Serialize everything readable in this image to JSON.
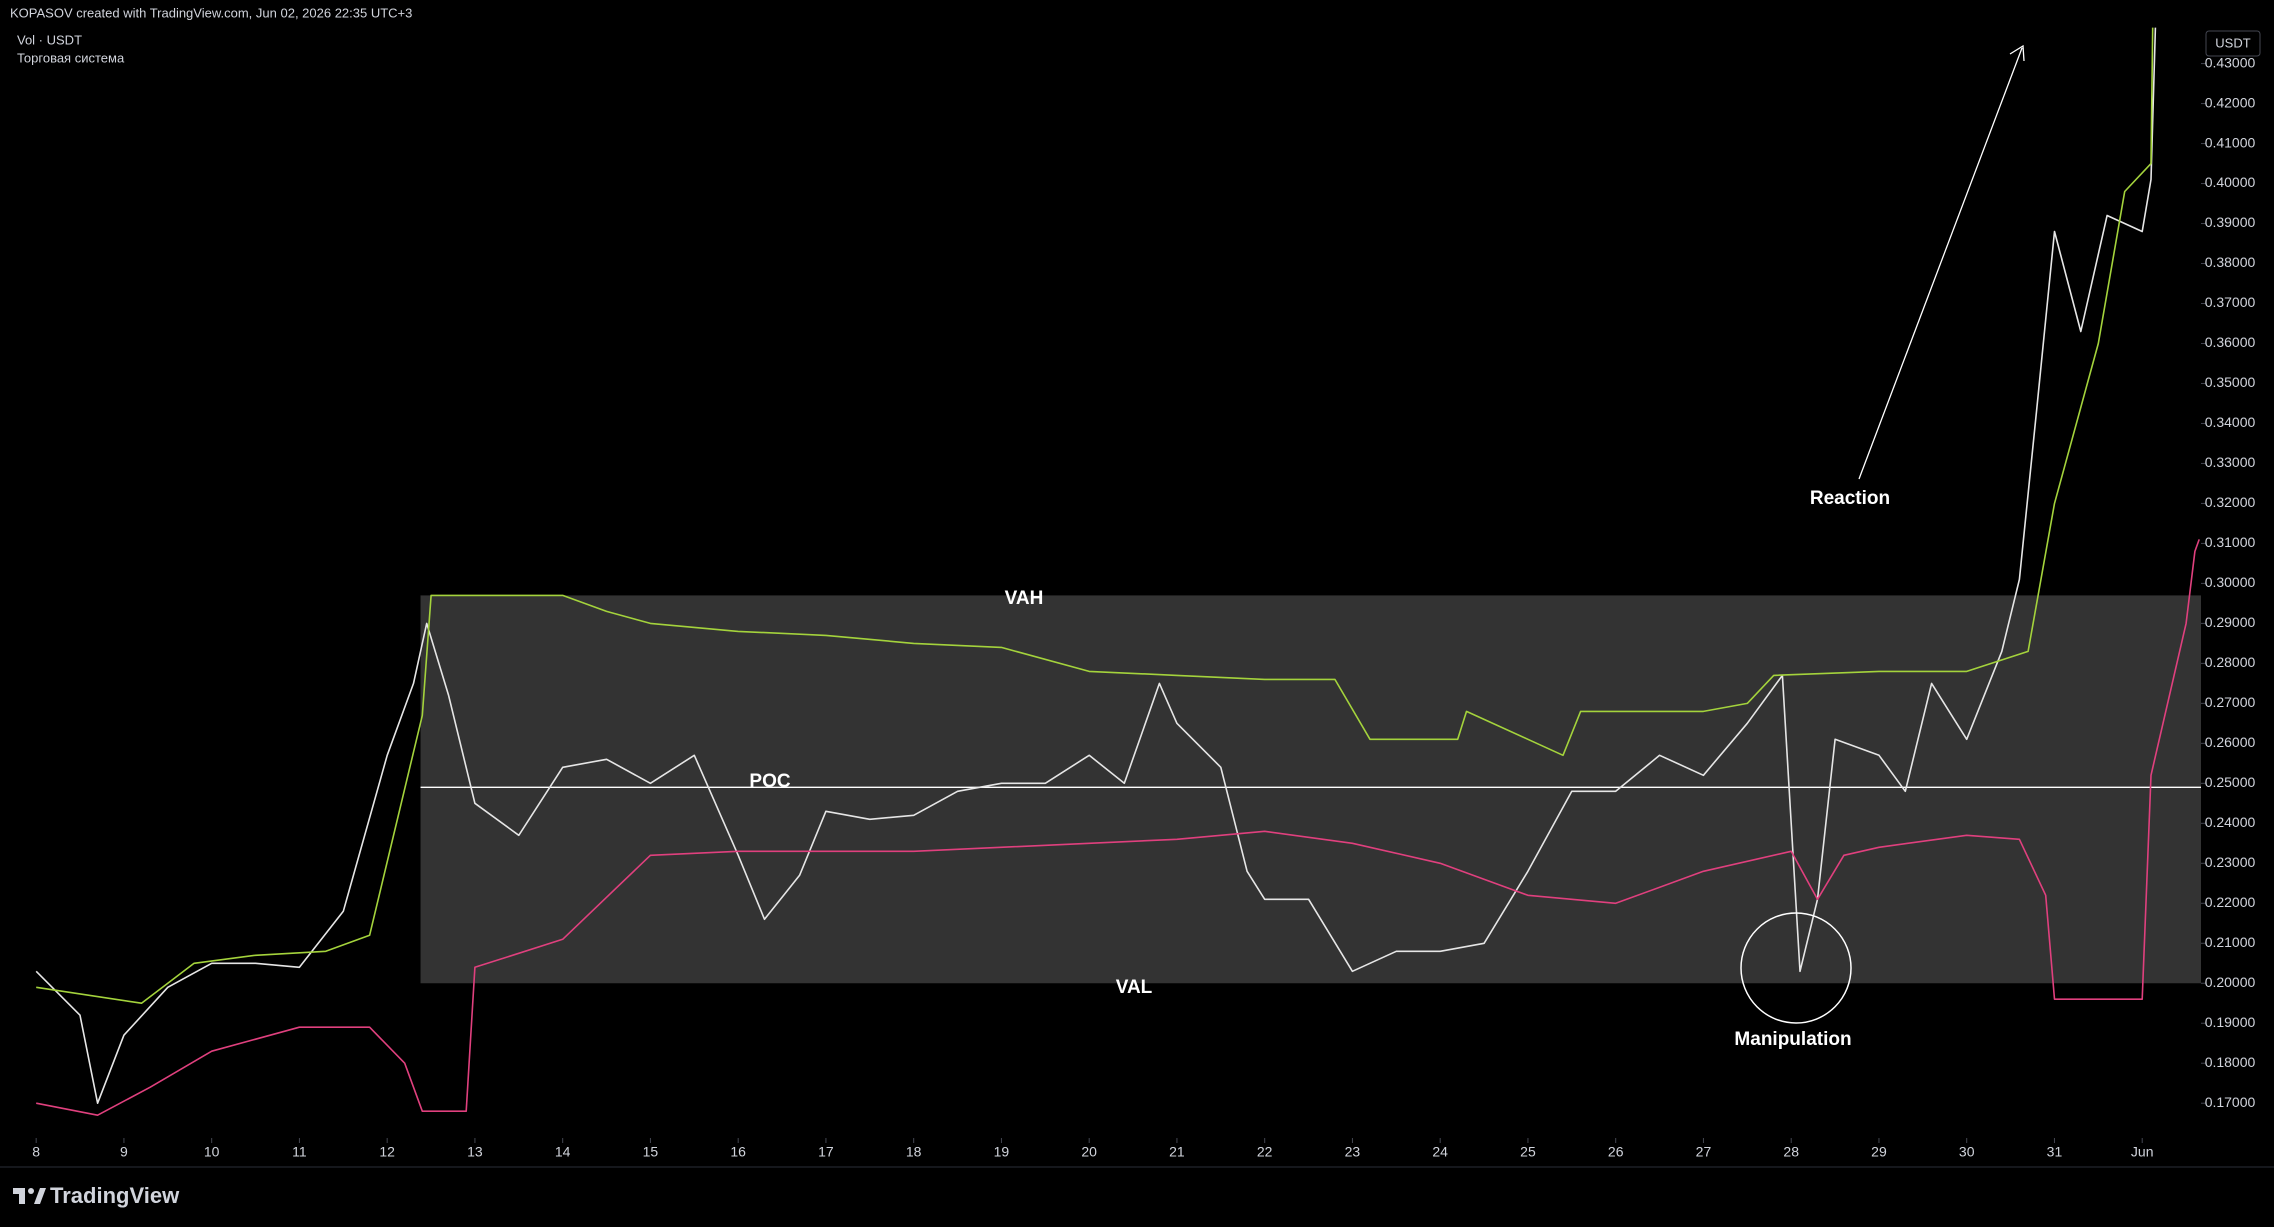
{
  "header": {
    "attribution": "KOPASOV created with TradingView.com, Jun 02, 2026 22:35 UTC+3",
    "symbol": "Vol · USDT",
    "indicator": "Торговая система"
  },
  "footer": {
    "brand": "TradingView"
  },
  "chart_data": {
    "type": "line",
    "currency_label": "USDT",
    "xlim": [
      7.72,
      32.67
    ],
    "ylim": [
      0.1613,
      0.4394
    ],
    "xticks": [
      8,
      9,
      10,
      11,
      12,
      13,
      14,
      15,
      16,
      17,
      18,
      19,
      20,
      21,
      22,
      23,
      24,
      25,
      26,
      27,
      28,
      29,
      30,
      31,
      {
        "value": 32,
        "label": "Jun"
      }
    ],
    "yticks": [
      {
        "value": 0.17,
        "label": "0.17000"
      },
      {
        "value": 0.18,
        "label": "0.18000"
      },
      {
        "value": 0.19,
        "label": "0.19000"
      },
      {
        "value": 0.2,
        "label": "0.20000"
      },
      {
        "value": 0.21,
        "label": "0.21000"
      },
      {
        "value": 0.22,
        "label": "0.22000"
      },
      {
        "value": 0.23,
        "label": "0.23000"
      },
      {
        "value": 0.24,
        "label": "0.24000"
      },
      {
        "value": 0.25,
        "label": "0.25000"
      },
      {
        "value": 0.26,
        "label": "0.26000"
      },
      {
        "value": 0.27,
        "label": "0.27000"
      },
      {
        "value": 0.28,
        "label": "0.28000"
      },
      {
        "value": 0.29,
        "label": "0.29000"
      },
      {
        "value": 0.3,
        "label": "0.30000"
      },
      {
        "value": 0.31,
        "label": "0.31000"
      },
      {
        "value": 0.32,
        "label": "0.32000"
      },
      {
        "value": 0.33,
        "label": "0.33000"
      },
      {
        "value": 0.34,
        "label": "0.34000"
      },
      {
        "value": 0.35,
        "label": "0.35000"
      },
      {
        "value": 0.36,
        "label": "0.36000"
      },
      {
        "value": 0.37,
        "label": "0.37000"
      },
      {
        "value": 0.38,
        "label": "0.38000"
      },
      {
        "value": 0.39,
        "label": "0.39000"
      },
      {
        "value": 0.4,
        "label": "0.40000"
      },
      {
        "value": 0.41,
        "label": "0.41000"
      },
      {
        "value": 0.42,
        "label": "0.42000"
      },
      {
        "value": 0.43,
        "label": "0.43000"
      }
    ],
    "series": [
      {
        "color": "#e6e6e6",
        "x": [
          8,
          8.5,
          8.7,
          9,
          9.5,
          10,
          10.5,
          11,
          11.5,
          12,
          12.3,
          12.45,
          12.7,
          13,
          13.5,
          14,
          14.5,
          15,
          15.5,
          16,
          16.3,
          16.7,
          17,
          17.5,
          18,
          18.5,
          19,
          19.5,
          20,
          20.4,
          20.8,
          21,
          21.5,
          21.8,
          22,
          22.5,
          23,
          23.5,
          24,
          24.5,
          25,
          25.5,
          26,
          26.5,
          27,
          27.5,
          27.9,
          28.1,
          28.3,
          28.5,
          29,
          29.3,
          29.6,
          30,
          30.4,
          30.6,
          30.8,
          31,
          31.3,
          31.6,
          32,
          32.1,
          32.15
        ],
        "values": [
          0.203,
          0.192,
          0.17,
          0.187,
          0.199,
          0.205,
          0.205,
          0.204,
          0.218,
          0.257,
          0.275,
          0.29,
          0.272,
          0.245,
          0.237,
          0.254,
          0.256,
          0.25,
          0.257,
          0.232,
          0.216,
          0.227,
          0.243,
          0.241,
          0.242,
          0.248,
          0.25,
          0.25,
          0.257,
          0.25,
          0.275,
          0.265,
          0.254,
          0.228,
          0.221,
          0.221,
          0.203,
          0.208,
          0.208,
          0.21,
          0.228,
          0.248,
          0.248,
          0.257,
          0.252,
          0.265,
          0.277,
          0.203,
          0.221,
          0.261,
          0.257,
          0.248,
          0.275,
          0.261,
          0.283,
          0.301,
          0.344,
          0.388,
          0.363,
          0.392,
          0.388,
          0.401,
          0.439
        ]
      },
      {
        "color": "#a4d33c",
        "x": [
          8,
          9.2,
          9.8,
          10.5,
          11.3,
          11.8,
          12.4,
          12.5,
          14,
          14.5,
          15,
          16,
          17,
          18,
          19,
          20,
          21,
          22,
          22.8,
          23.2,
          24.2,
          24.3,
          25,
          25.4,
          25.6,
          27,
          27.5,
          27.8,
          29,
          30,
          30.7,
          31,
          31.5,
          31.8,
          32.1,
          32.12
        ],
        "values": [
          0.199,
          0.195,
          0.205,
          0.207,
          0.208,
          0.212,
          0.267,
          0.297,
          0.297,
          0.293,
          0.29,
          0.288,
          0.287,
          0.285,
          0.284,
          0.278,
          0.277,
          0.276,
          0.276,
          0.261,
          0.261,
          0.268,
          0.261,
          0.257,
          0.268,
          0.268,
          0.27,
          0.277,
          0.278,
          0.278,
          0.283,
          0.32,
          0.36,
          0.398,
          0.405,
          0.439
        ]
      },
      {
        "color": "#e0407e",
        "x": [
          8,
          8.7,
          9.3,
          10,
          11,
          11.8,
          12.2,
          12.4,
          12.9,
          13,
          14,
          15,
          16,
          18,
          20,
          21,
          22,
          23,
          24,
          25,
          26,
          27,
          28,
          28.3,
          28.6,
          29,
          30,
          30.6,
          30.9,
          31,
          32,
          32.1,
          32.5,
          32.6,
          32.65
        ],
        "values": [
          0.17,
          0.167,
          0.174,
          0.183,
          0.189,
          0.189,
          0.18,
          0.168,
          0.168,
          0.204,
          0.211,
          0.232,
          0.233,
          0.233,
          0.235,
          0.236,
          0.238,
          0.235,
          0.23,
          0.222,
          0.22,
          0.228,
          0.233,
          0.221,
          0.232,
          0.234,
          0.237,
          0.236,
          0.222,
          0.196,
          0.196,
          0.252,
          0.29,
          0.308,
          0.311
        ]
      }
    ],
    "value_area": {
      "start": 12.38,
      "high": 0.297,
      "low": 0.2,
      "poc": 0.249
    },
    "annotations": [
      "VAH",
      "POC",
      "VAL",
      "Reaction",
      "Manipulation"
    ]
  }
}
